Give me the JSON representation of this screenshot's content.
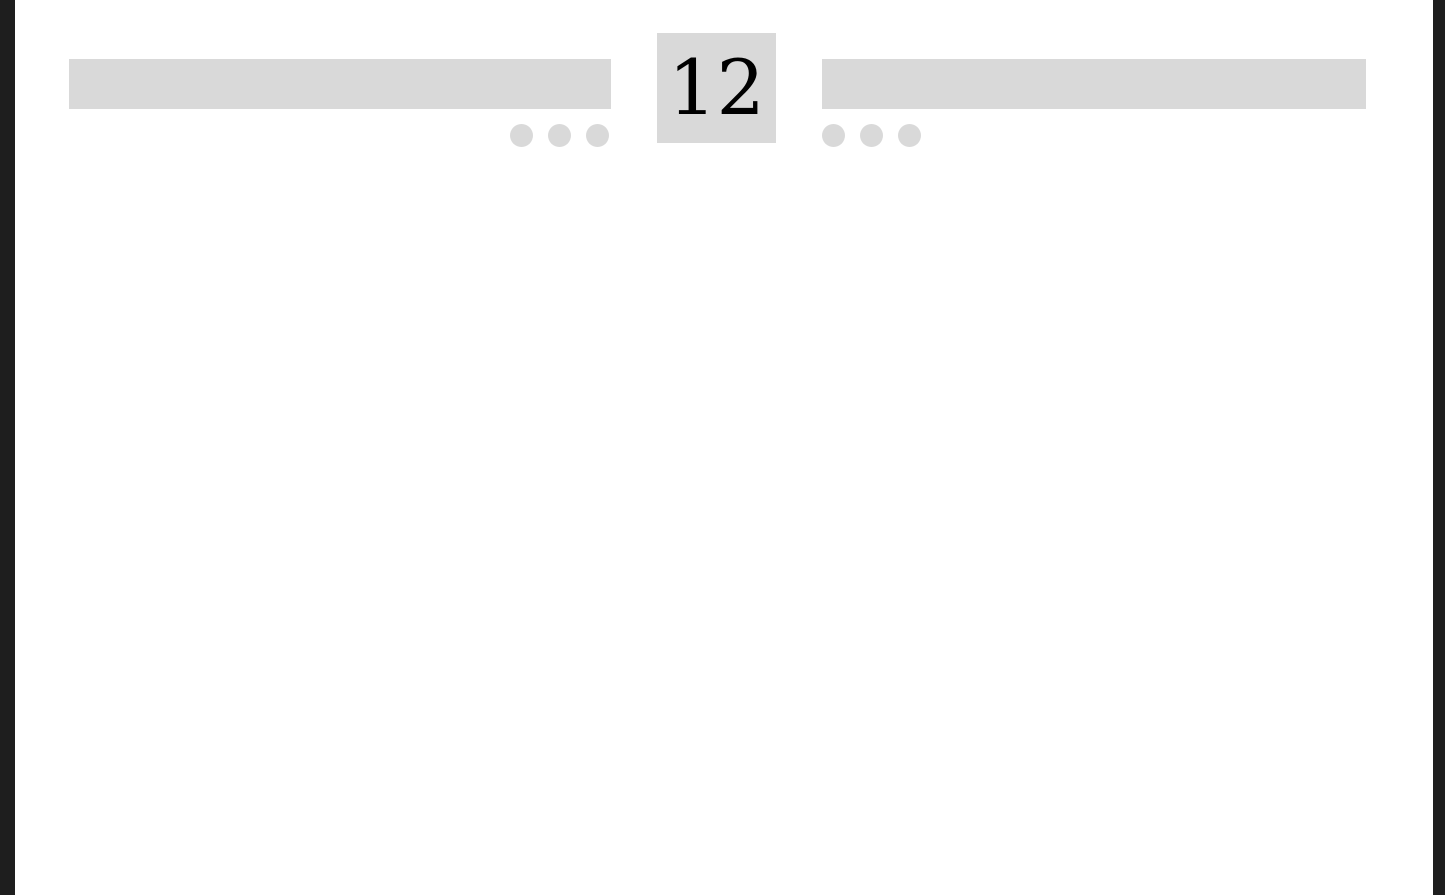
{
  "scoreboard": {
    "center_number": "12",
    "left_dots": 3,
    "right_dots": 3,
    "bar_color": "#d9d9d9",
    "frame_color": "#1e1e1e"
  }
}
